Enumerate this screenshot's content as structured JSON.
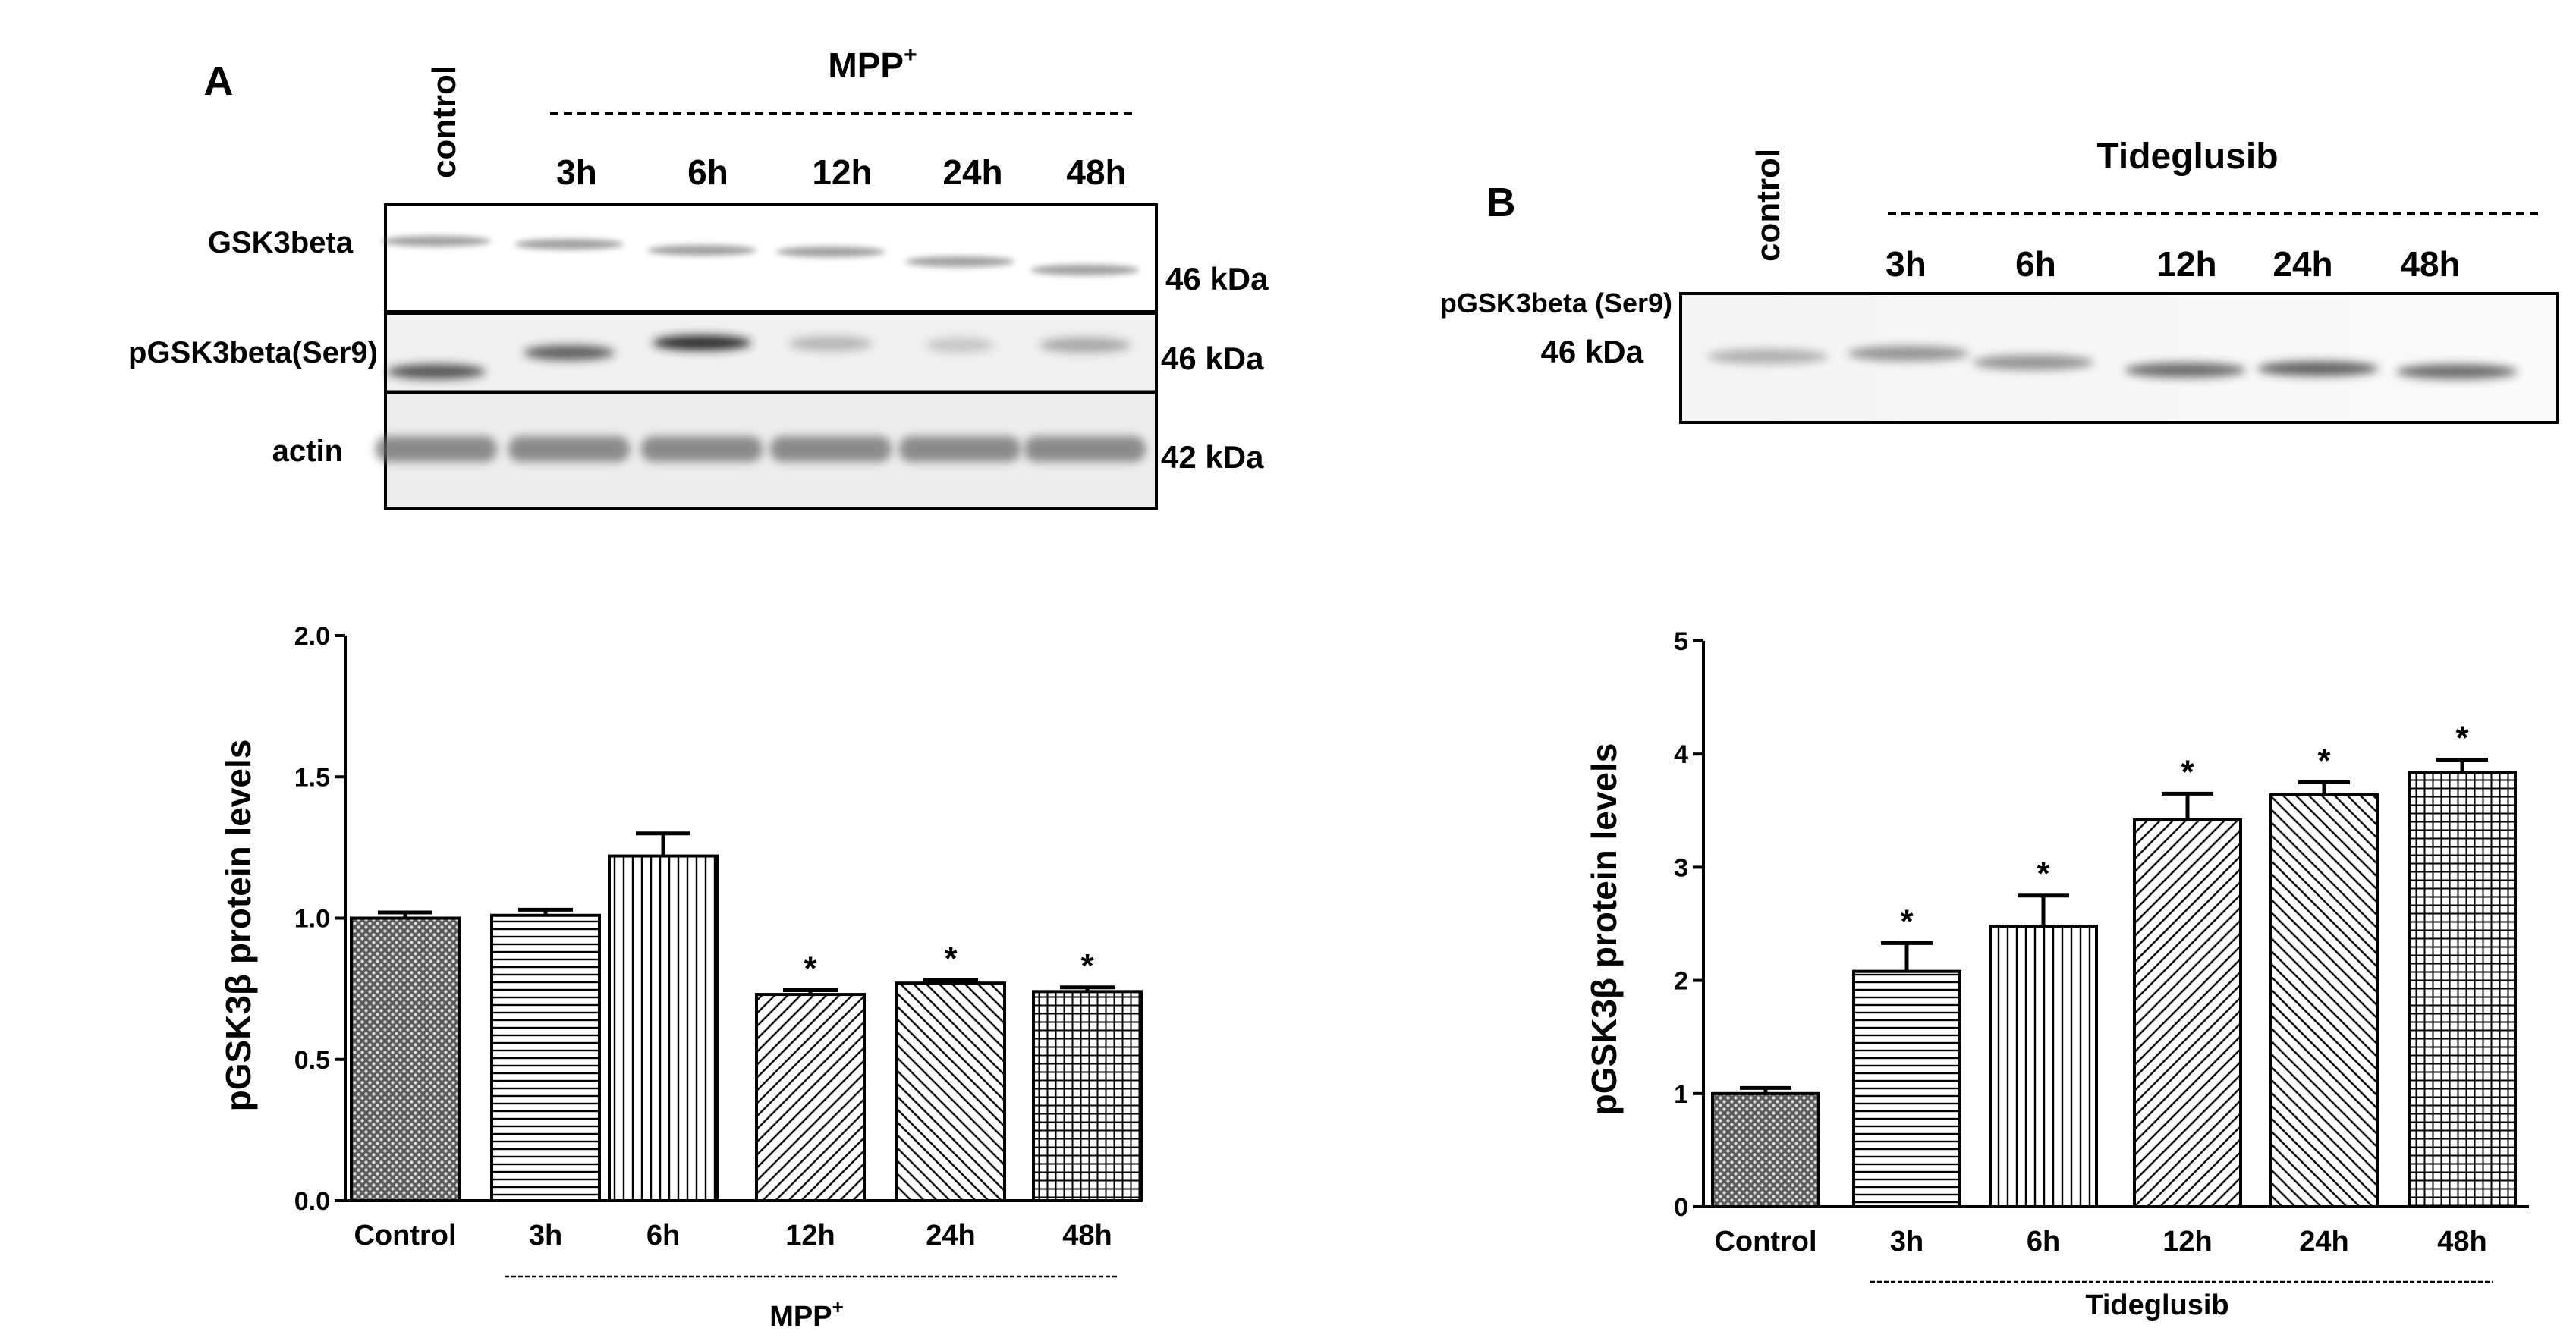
{
  "panelA": {
    "letter": "A",
    "blot": {
      "control_label": "control",
      "treatment": "MPP",
      "treatment_sup": "+",
      "lanes": [
        "3h",
        "6h",
        "12h",
        "24h",
        "48h"
      ],
      "rows": [
        {
          "name": "GSK3beta",
          "kda": "46 kDa"
        },
        {
          "name": "pGSK3beta(Ser9)",
          "kda": "46 kDa"
        },
        {
          "name": "actin",
          "kda": "42 kDa"
        }
      ]
    }
  },
  "panelB": {
    "letter": "B",
    "blot": {
      "control_label": "control",
      "treatment": "Tideglusib",
      "lanes": [
        "3h",
        "6h",
        "12h",
        "24h",
        "48h"
      ],
      "rows": [
        {
          "name": "pGSK3beta (Ser9)",
          "kda": "46 kDa"
        }
      ]
    }
  },
  "chart_data": [
    {
      "type": "bar",
      "title": "",
      "ylabel": "pGSK3β protein levels",
      "xlabel": "MPP",
      "xlabel_sup": "+",
      "categories": [
        "Control",
        "3h",
        "6h",
        "12h",
        "24h",
        "48h"
      ],
      "values": [
        1.0,
        1.01,
        1.22,
        0.73,
        0.77,
        0.74
      ],
      "errors": [
        0.02,
        0.02,
        0.08,
        0.015,
        0.01,
        0.015
      ],
      "significance": [
        "",
        "",
        "",
        "*",
        "*",
        "*"
      ],
      "patterns": [
        "cross",
        "hline",
        "vline",
        "diag",
        "diag-rev",
        "grid"
      ],
      "ylim": [
        0,
        2.0
      ],
      "yticks": [
        0,
        0.5,
        1.0,
        1.5,
        2.0
      ],
      "ytick_labels": [
        "0.0",
        "0.5",
        "1.0",
        "1.5",
        "2.0"
      ]
    },
    {
      "type": "bar",
      "title": "",
      "ylabel": "pGSK3β protein levels",
      "xlabel": "Tideglusib",
      "categories": [
        "Control",
        "3h",
        "6h",
        "12h",
        "24h",
        "48h"
      ],
      "values": [
        1.0,
        2.08,
        2.48,
        3.42,
        3.64,
        3.84
      ],
      "errors": [
        0.05,
        0.25,
        0.27,
        0.23,
        0.11,
        0.11
      ],
      "significance": [
        "",
        "*",
        "*",
        "*",
        "*",
        "*"
      ],
      "patterns": [
        "cross",
        "hline",
        "vline",
        "diag",
        "diag-rev",
        "grid"
      ],
      "ylim": [
        0,
        5
      ],
      "yticks": [
        0,
        1,
        2,
        3,
        4,
        5
      ],
      "ytick_labels": [
        "0",
        "1",
        "2",
        "3",
        "4",
        "5"
      ]
    }
  ]
}
